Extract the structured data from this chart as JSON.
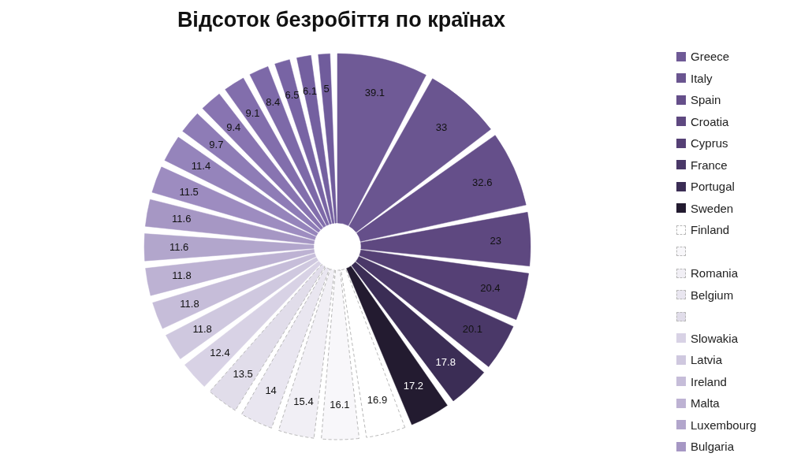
{
  "chart_data": {
    "type": "pie",
    "title": "Відсоток безробіття по країнах",
    "categories": [
      "Greece",
      "Italy",
      "Spain",
      "Croatia",
      "Cyprus",
      "France",
      "Portugal",
      "Sweden",
      "Finland",
      null,
      "Romania",
      "Belgium",
      null,
      "Slowakia",
      "Latvia",
      "Ireland",
      "Malta",
      "Luxembourg",
      "Bulgaria",
      null,
      null,
      null,
      null,
      null,
      null,
      null,
      null,
      null
    ],
    "values": [
      39.1,
      33,
      32.6,
      23,
      20.4,
      20.1,
      17.8,
      17.2,
      16.9,
      16.1,
      15.4,
      14,
      13.5,
      12.4,
      11.8,
      11.8,
      11.8,
      11.6,
      11.6,
      11.5,
      11.4,
      9.7,
      9.4,
      9.1,
      8.4,
      6.5,
      6.1,
      5
    ],
    "colors": [
      "#6f5a96",
      "#6a5590",
      "#654f8a",
      "#5e4880",
      "#554075",
      "#4a3868",
      "#3b2d55",
      "#231b30",
      "#ffffff",
      "#f8f7fa",
      "#f1eff5",
      "#e9e6f0",
      "#e1ddea",
      "#d8d2e5",
      "#cfc8df",
      "#c6bdd9",
      "#bdb2d3",
      "#b2a6cc",
      "#a697c4",
      "#9d8cc0",
      "#9584bb",
      "#8e7cb6",
      "#8874b1",
      "#826eac",
      "#7d69a8",
      "#7864a4",
      "#7460a0",
      "#705c9c"
    ],
    "data_labels": true,
    "legend": "right"
  }
}
